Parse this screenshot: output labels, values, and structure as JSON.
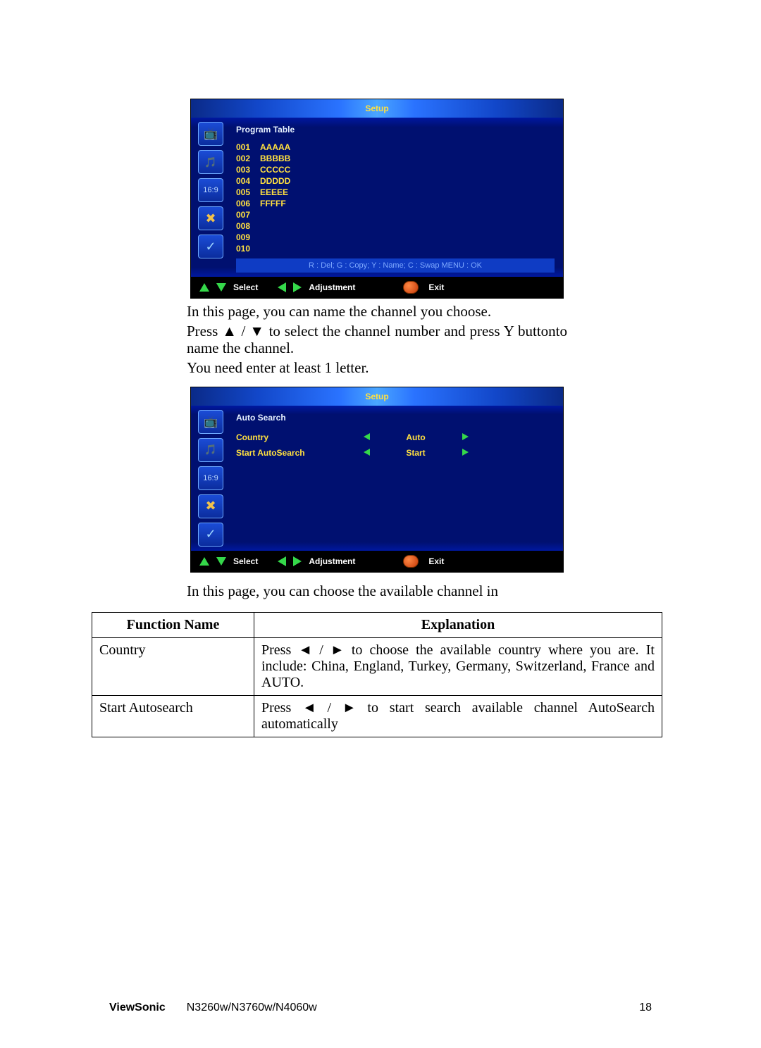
{
  "osd": {
    "title": "Setup",
    "icons": [
      "tv",
      "audio",
      "aspect",
      "tools",
      "check"
    ],
    "aspect_text": "16:9"
  },
  "screenshot1": {
    "heading": "Program Table",
    "channels": [
      {
        "num": "001",
        "name": "AAAAA"
      },
      {
        "num": "002",
        "name": "BBBBB"
      },
      {
        "num": "003",
        "name": "CCCCC"
      },
      {
        "num": "004",
        "name": "DDDDD"
      },
      {
        "num": "005",
        "name": "EEEEE"
      },
      {
        "num": "006",
        "name": "FFFFF"
      },
      {
        "num": "007",
        "name": ""
      },
      {
        "num": "008",
        "name": ""
      },
      {
        "num": "009",
        "name": ""
      },
      {
        "num": "010",
        "name": ""
      }
    ],
    "hint": "R : Del; G : Copy; Y : Name; C : Swap  MENU : OK"
  },
  "footerbar": {
    "select": "Select",
    "adjust": "Adjustment",
    "exit": "Exit"
  },
  "para1a": "In this page, you can name the channel you choose.",
  "para1b": "Press ▲ / ▼ to select the channel number and press Y buttonto name the channel.",
  "para1c": "You need enter at least 1 letter.",
  "screenshot2": {
    "heading": "Auto Search",
    "rows": [
      {
        "label": "Country",
        "value": "Auto"
      },
      {
        "label": "Start AutoSearch",
        "value": "Start"
      }
    ]
  },
  "para2": "In this page, you can choose the available channel in",
  "table": {
    "headers": [
      "Function Name",
      "Explanation"
    ],
    "rows": [
      {
        "fn": "Country",
        "exp": "Press ◄ / ► to choose the available country where you are. It include: China, England, Turkey, Germany, Switzerland, France and AUTO."
      },
      {
        "fn": "Start Autosearch",
        "exp": "Press ◄ / ► to start search available channel AutoSearch automatically"
      }
    ]
  },
  "pagefoot": {
    "brand": "ViewSonic",
    "model": "N3260w/N3760w/N4060w",
    "page": "18"
  },
  "colors": {
    "osd_yellow": "#ffe040",
    "arrow_green": "#35d84a",
    "osd_bg": "#001070"
  }
}
